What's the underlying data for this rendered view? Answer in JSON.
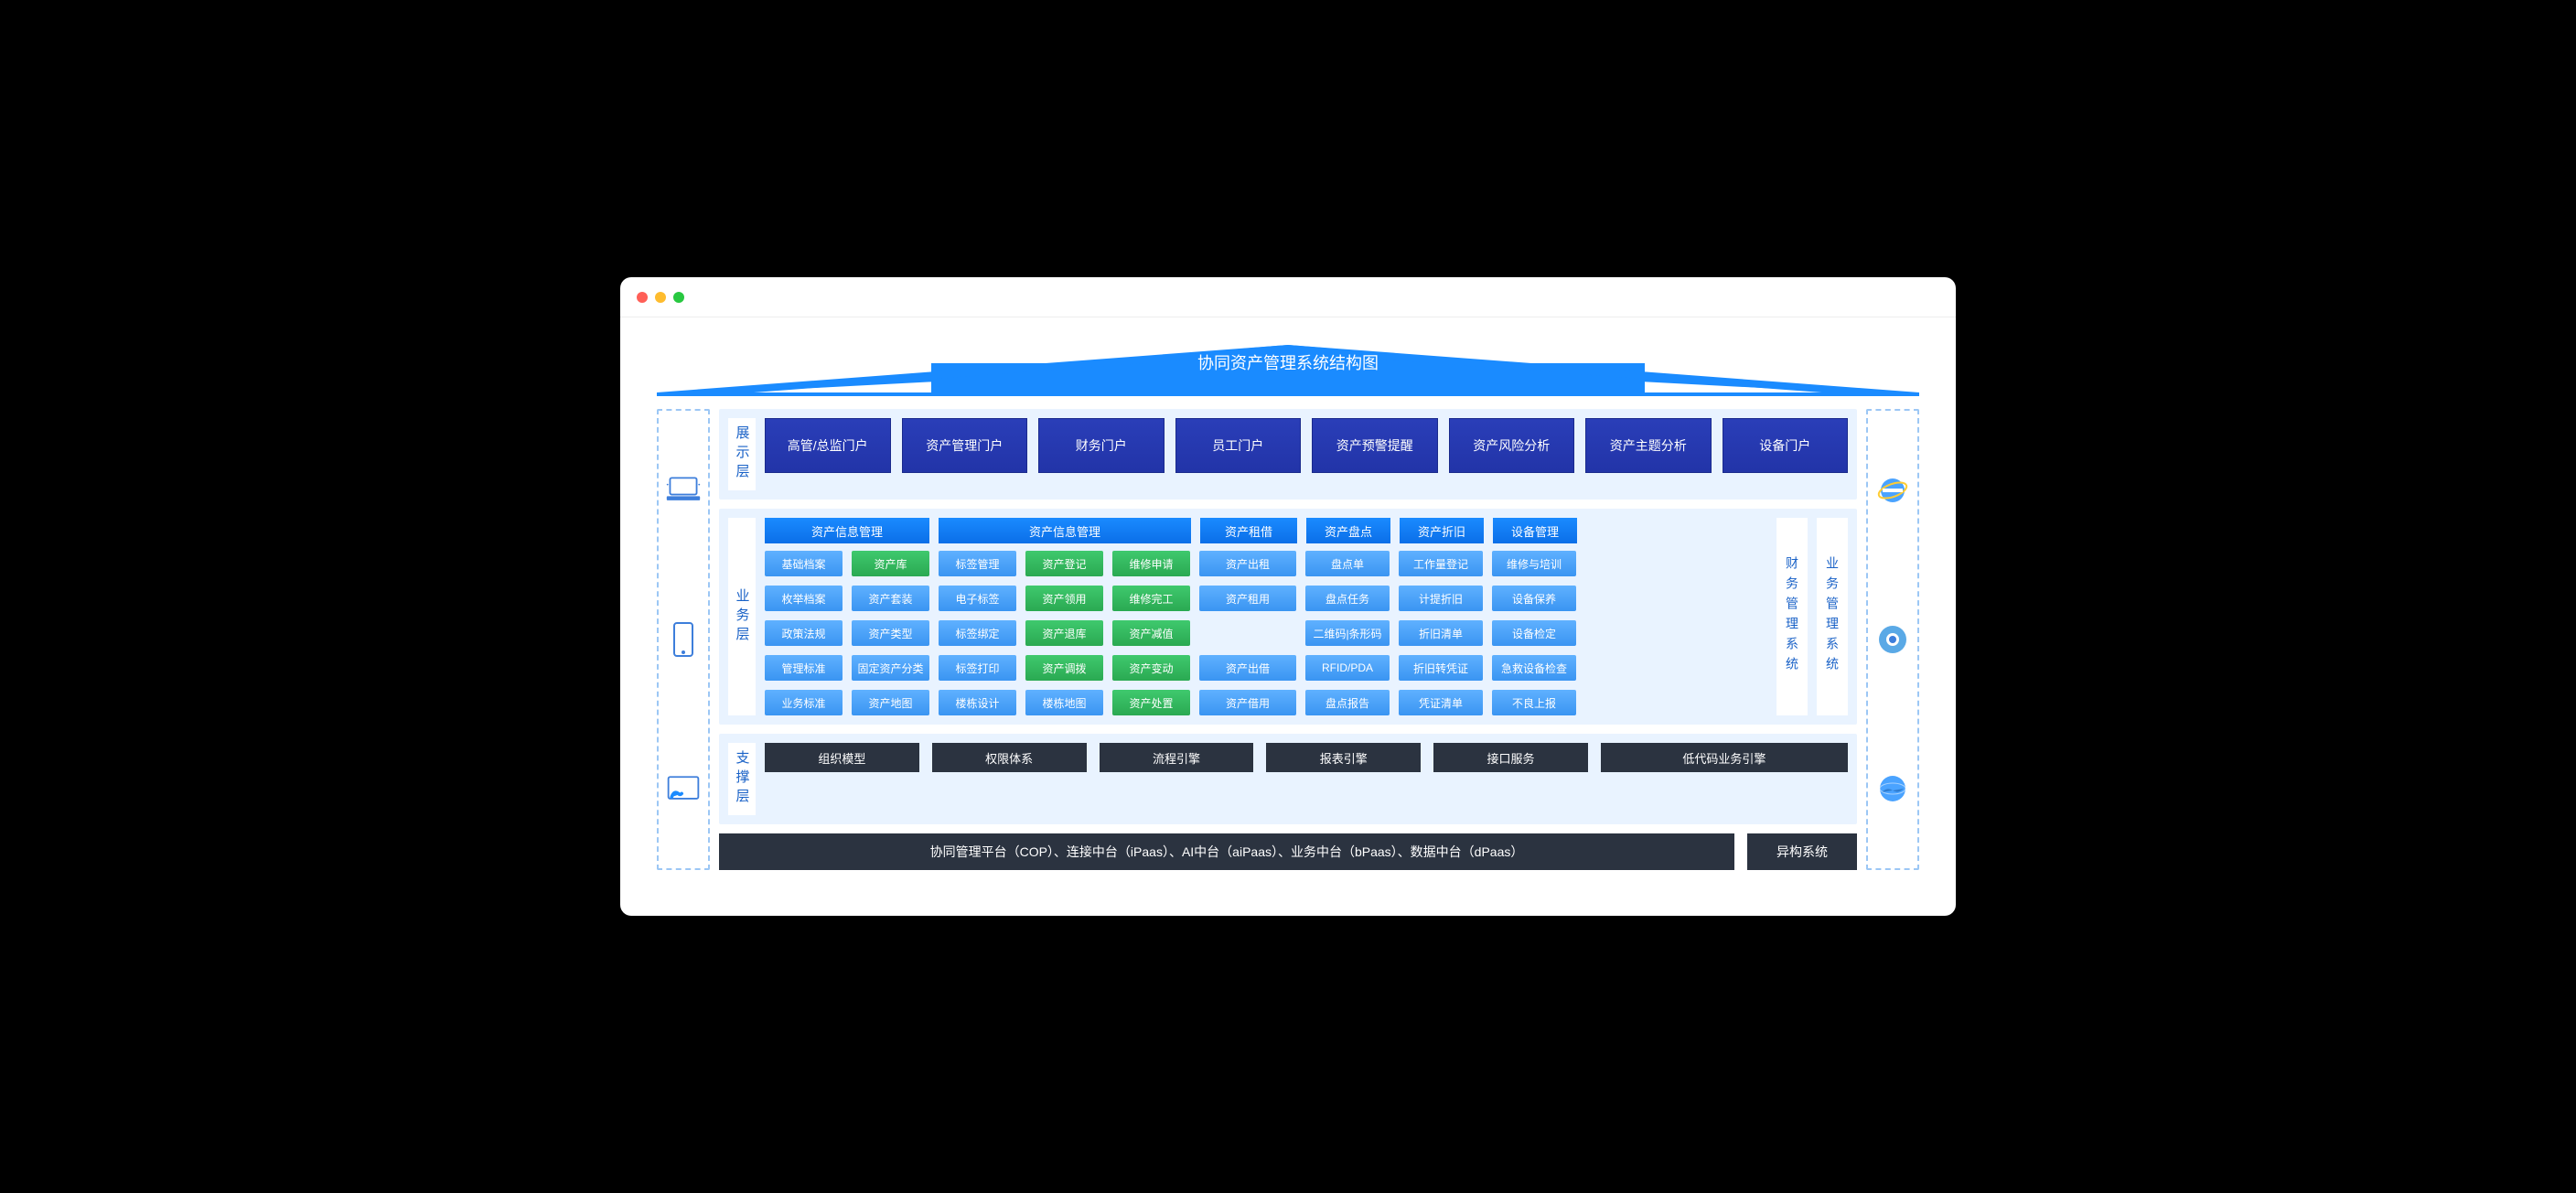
{
  "type": "architecture-diagram",
  "colors": {
    "page_bg": "#000000",
    "frame_bg": "#ffffff",
    "dot_red": "#ff5f57",
    "dot_yellow": "#febc2e",
    "dot_green": "#28c840",
    "roof_fill": "#1a8bff",
    "layer_bg": "#e9f3ff",
    "layer_label_color": "#1a62c7",
    "portal_bg": "#2a3eb8",
    "bizheader_bg": "#1a8bff",
    "cell_blue": "#3a95f2",
    "cell_green": "#2aa952",
    "support_bg": "#2b3340",
    "dashed_border": "#9cc7f5"
  },
  "title": "协同资产管理系统结构图",
  "left_icons": [
    "laptop-icon",
    "phone-icon",
    "touch-icon"
  ],
  "right_icons": [
    "ie-icon",
    "chrome-icon",
    "globe-icon"
  ],
  "layers": {
    "display": {
      "label": "展示层",
      "portals": [
        "高管/总监门户",
        "资产管理门户",
        "财务门户",
        "员工门户",
        "资产预警提醒",
        "资产风险分析",
        "资产主题分析",
        "设备门户"
      ]
    },
    "business": {
      "label": "业务层",
      "pillars": [
        "财务管理系统",
        "业务管理系统"
      ],
      "headers": [
        "资产信息管理",
        "资产信息管理",
        "资产租借",
        "资产盘点",
        "资产折旧",
        "设备管理"
      ],
      "grid": [
        [
          "基础档案",
          "资产库",
          "标签管理",
          "资产登记",
          "维修申请",
          "资产出租",
          "盘点单",
          "工作量登记",
          "维修与培训"
        ],
        [
          "枚举档案",
          "资产套装",
          "电子标签",
          "资产领用",
          "维修完工",
          "资产租用",
          "盘点任务",
          "计提折旧",
          "设备保养"
        ],
        [
          "政策法规",
          "资产类型",
          "标签绑定",
          "资产退库",
          "资产减值",
          "",
          "二维码|条形码",
          "折旧清单",
          "设备检定"
        ],
        [
          "管理标准",
          "固定资产分类",
          "标签打印",
          "资产调拨",
          "资产变动",
          "资产出借",
          "RFID/PDA",
          "折旧转凭证",
          "急救设备检查"
        ],
        [
          "业务标准",
          "资产地图",
          "楼栋设计",
          "楼栋地图",
          "资产处置",
          "资产借用",
          "盘点报告",
          "凭证清单",
          "不良上报"
        ]
      ],
      "green_cells": [
        "资产库",
        "资产登记",
        "维修申请",
        "资产领用",
        "维修完工",
        "资产退库",
        "资产减值",
        "资产调拨",
        "资产变动",
        "资产处置"
      ],
      "tall_cells": {
        "资产出租": [
          0,
          5
        ],
        "资产租用": [
          1,
          5
        ],
        "资产出借": [
          3,
          5
        ]
      }
    },
    "support": {
      "label": "支撑层",
      "items": [
        "组织模型",
        "权限体系",
        "流程引擎",
        "报表引擎",
        "接口服务",
        "低代码业务引擎"
      ]
    }
  },
  "footer": {
    "main": "协同管理平台（COP）、连接中台（iPaas）、AI中台（aiPaas）、业务中台（bPaas）、数据中台（dPaas）",
    "side": "异构系统"
  }
}
